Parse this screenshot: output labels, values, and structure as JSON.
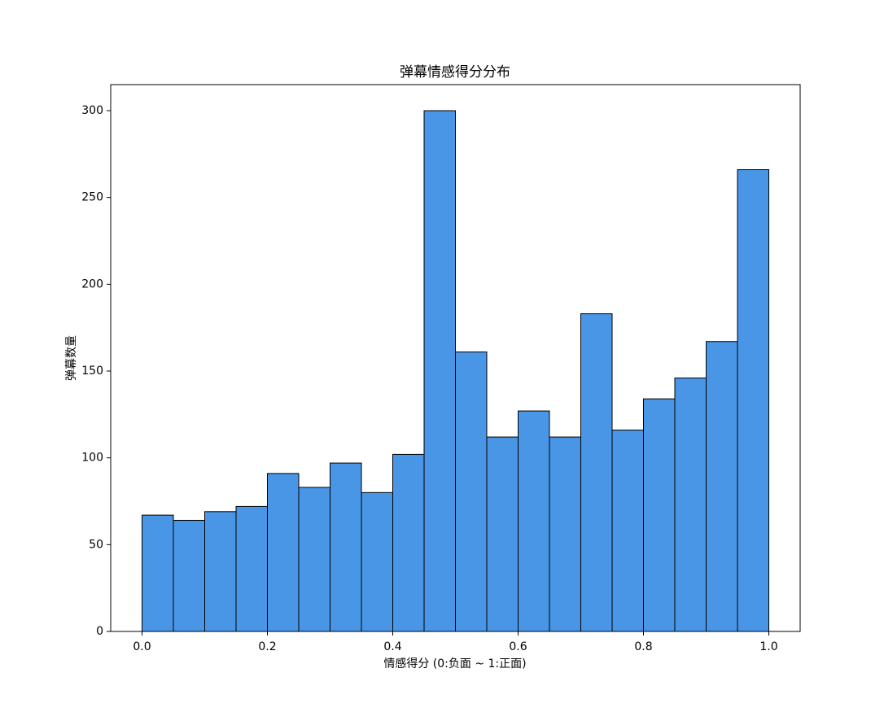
{
  "chart_data": {
    "type": "histogram",
    "title": "弹幕情感得分分布",
    "xlabel": "情感得分 (0:负面 ~ 1:正面)",
    "ylabel": "弹幕数量",
    "bins": [
      0,
      0.05,
      0.1,
      0.15,
      0.2,
      0.25,
      0.3,
      0.35,
      0.4,
      0.45,
      0.5,
      0.55,
      0.6,
      0.65,
      0.7,
      0.75,
      0.8,
      0.85,
      0.9,
      0.95,
      1
    ],
    "values": [
      67,
      64,
      69,
      72,
      91,
      83,
      97,
      80,
      102,
      300,
      161,
      112,
      127,
      112,
      183,
      116,
      134,
      146,
      167,
      266
    ],
    "color": "#4a96e6",
    "edgecolor": "#000000",
    "xlim": [
      -0.05,
      1.05
    ],
    "ylim": [
      0,
      315
    ],
    "xticks": [
      {
        "value": 0,
        "label": "0.0"
      },
      0.2,
      0.4,
      0.6,
      0.8,
      {
        "value": 1,
        "label": "1.0"
      }
    ],
    "yticks": [
      0,
      50,
      100,
      150,
      200,
      250,
      300
    ]
  }
}
